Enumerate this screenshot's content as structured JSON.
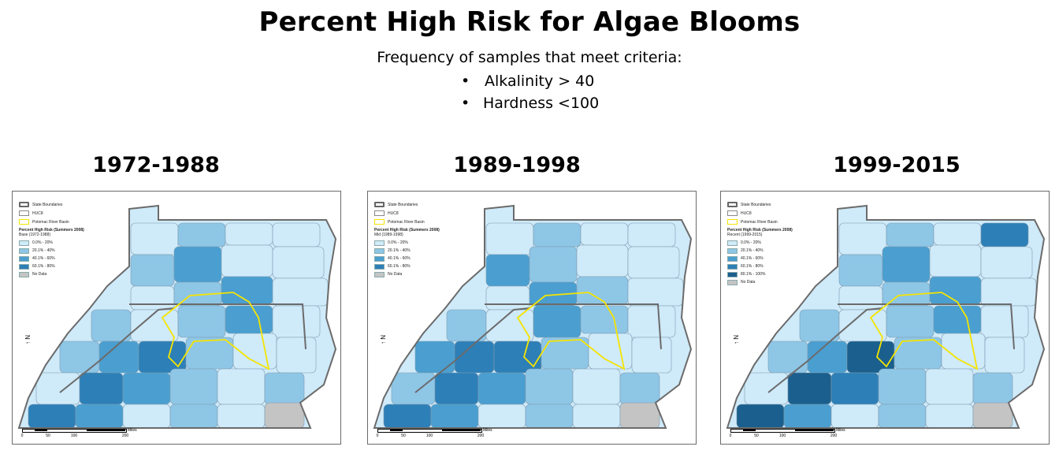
{
  "title": "Percent High Risk for Algae Blooms",
  "subtitle": "Frequency of samples that meet criteria:",
  "criteria": [
    "Alkalinity > 40",
    "Hardness <100"
  ],
  "legend": {
    "state_boundaries": "State Boundaries",
    "hucs": "HUC8",
    "potomac": "Potomac River Basin",
    "heading": "Percent High Risk (Summers 2008)",
    "no_data": "No Data"
  },
  "colors": {
    "class1": "#cfeaf9",
    "class2": "#8ec6e6",
    "class3": "#4a9fd0",
    "class4": "#2d7fb7",
    "class5": "#1a5f8d",
    "no_data": "#c4c4c4",
    "state_line": "#6b6b6b",
    "potomac_line": "#f5e400"
  },
  "scale": {
    "ticks": [
      "0",
      "50",
      "100",
      "200"
    ],
    "unit": "Miles"
  },
  "north_label": "N",
  "maps": [
    {
      "period": "1972-1988",
      "subtitle": "Base (1972-1988)",
      "classes": [
        "0.0% - 20%",
        "20.1% - 40%",
        "40.1% - 60%",
        "60.1% - 80%"
      ]
    },
    {
      "period": "1989-1998",
      "subtitle": "Mid (1989-1998)",
      "classes": [
        "0.0% - 20%",
        "20.1% - 40%",
        "40.1% - 60%",
        "60.1% - 80%"
      ]
    },
    {
      "period": "1999-2015",
      "subtitle": "Recent (1999-2015)",
      "classes": [
        "0.0% - 20%",
        "20.1% - 40%",
        "40.1% - 60%",
        "60.1% - 80%",
        "80.1% - 100%"
      ]
    }
  ]
}
